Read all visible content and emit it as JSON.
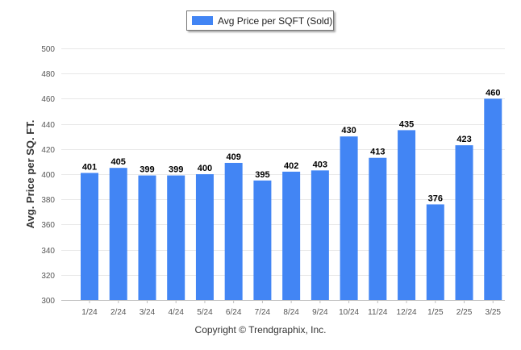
{
  "legend": {
    "label": "Avg Price per SQFT (Sold)"
  },
  "footer": {
    "copyright": "Copyright © Trendgraphix, Inc."
  },
  "colors": {
    "bar": "#4285f4",
    "grid": "#e8e8e8",
    "axis": "#c0c0c0"
  },
  "chart_data": {
    "type": "bar",
    "categories": [
      "1/24",
      "2/24",
      "3/24",
      "4/24",
      "5/24",
      "6/24",
      "7/24",
      "8/24",
      "9/24",
      "10/24",
      "11/24",
      "12/24",
      "1/25",
      "2/25",
      "3/25"
    ],
    "series": [
      {
        "name": "Avg Price per SQFT (Sold)",
        "values": [
          401,
          405,
          399,
          399,
          400,
          409,
          395,
          402,
          403,
          430,
          413,
          435,
          376,
          423,
          460
        ]
      }
    ],
    "ylabel": "Avg. Price per SQ. FT.",
    "xlabel": "",
    "ylim": [
      300,
      500
    ],
    "yticks": [
      300,
      320,
      340,
      360,
      380,
      400,
      420,
      440,
      460,
      480,
      500
    ],
    "grid": true,
    "legend_position": "top-center"
  }
}
